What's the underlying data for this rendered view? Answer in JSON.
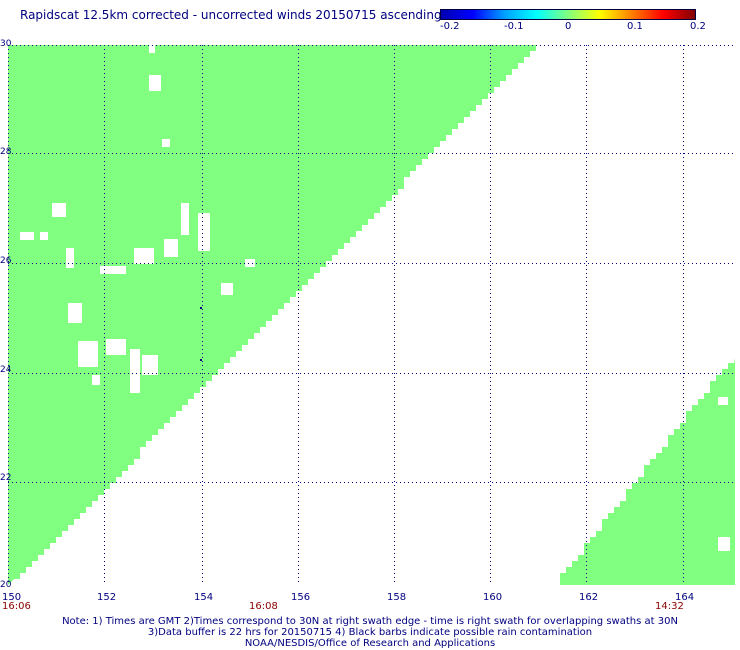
{
  "header": {
    "title": "Rapidscat 12.5km corrected - uncorrected winds 20150715 ascending"
  },
  "colorbar": {
    "ticks": [
      "-0.2",
      "-0.1",
      "0",
      "0.1",
      "0.2"
    ],
    "colors": [
      "#0000b0",
      "#0000ff",
      "#00a0ff",
      "#00ffff",
      "#80ff80",
      "#ffff00",
      "#ff8000",
      "#ff0000",
      "#800000"
    ]
  },
  "map": {
    "lat_labels": [
      "30",
      "28",
      "26",
      "24",
      "22",
      "20"
    ],
    "lon_labels": [
      "150",
      "152",
      "154",
      "156",
      "158",
      "160",
      "162",
      "164"
    ],
    "time_labels": [
      "16:06",
      "16:08",
      "14:32"
    ],
    "swath_color": "#80ff80",
    "grid_color": "#000080"
  },
  "footer": {
    "line1": "Note: 1) Times are GMT 2)Times correspond to 30N at right swath edge - time is right swath for overlapping swaths at 30N",
    "line2": "3)Data buffer is 22 hrs for 20150715 4) Black barbs indicate possible rain contamination",
    "line3": "NOAA/NESDIS/Office of Research and Applications"
  }
}
